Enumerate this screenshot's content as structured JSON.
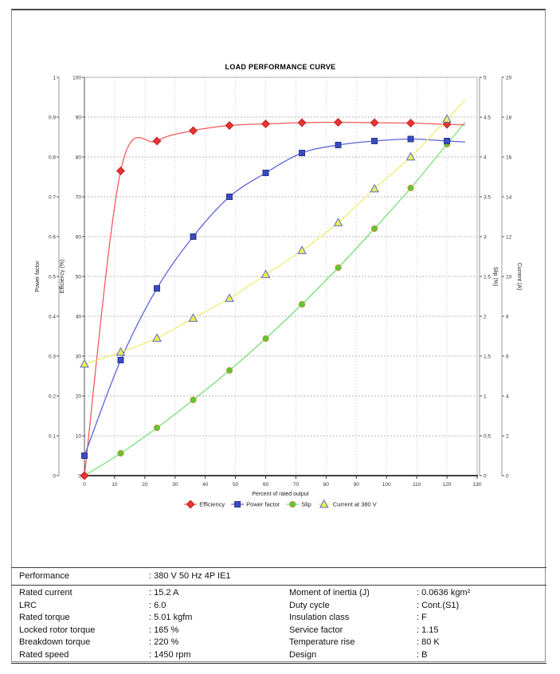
{
  "chart_data": {
    "type": "line",
    "title": "LOAD PERFORMANCE CURVE",
    "xlabel": "Percent of rated output",
    "x_axis": {
      "min": 0,
      "max": 130,
      "step": 10
    },
    "axes": [
      {
        "id": "power_factor",
        "label": "Power factor",
        "min": 0,
        "max": 1,
        "step": 0.1,
        "side": "left"
      },
      {
        "id": "efficiency",
        "label": "Efficiency (%)",
        "min": 0,
        "max": 100,
        "step": 10,
        "side": "left"
      },
      {
        "id": "slip",
        "label": "Slip (%)",
        "min": 0,
        "max": 5,
        "step": 0.5,
        "side": "right"
      },
      {
        "id": "current",
        "label": "Current (A)",
        "min": 0,
        "max": 20,
        "step": 2,
        "side": "right"
      }
    ],
    "x": [
      0,
      12,
      24,
      36,
      48,
      60,
      72,
      84,
      96,
      108,
      120
    ],
    "series": [
      {
        "name": "Efficiency",
        "axis": "efficiency",
        "marker": "diamond",
        "color": "#f25b5b",
        "marker_fill": "#e73434",
        "marker_edge": "#c02424",
        "values": [
          0,
          76.5,
          84.0,
          86.6,
          87.9,
          88.3,
          88.6,
          88.7,
          88.6,
          88.5,
          88.2
        ]
      },
      {
        "name": "Power factor",
        "axis": "power_factor",
        "marker": "square",
        "color": "#5b64d6",
        "marker_fill": "#3a4cc0",
        "marker_edge": "#27378f",
        "values": [
          0.05,
          0.29,
          0.47,
          0.6,
          0.7,
          0.76,
          0.81,
          0.83,
          0.84,
          0.845,
          0.84
        ]
      },
      {
        "name": "Slip",
        "axis": "slip",
        "marker": "circle",
        "color": "#7ade7a",
        "marker_fill": "#54cc34",
        "marker_edge": "#cc8c33",
        "values": [
          0,
          0.28,
          0.6,
          0.95,
          1.32,
          1.72,
          2.15,
          2.61,
          3.1,
          3.61,
          4.16
        ]
      },
      {
        "name": "Current at 380 V",
        "axis": "current",
        "marker": "triangle",
        "color": "#f0ec72",
        "marker_fill": "#eeee55",
        "marker_edge": "#5a6ac8",
        "values": [
          5.6,
          6.2,
          6.9,
          7.9,
          8.9,
          10.1,
          11.3,
          12.7,
          14.4,
          16.0,
          17.9
        ]
      }
    ],
    "legend_position": "bottom",
    "grid": "dashed"
  },
  "spec_table": {
    "performance_label": "Performance",
    "performance_value": ": 380 V 50 Hz 4P IE1",
    "rows": [
      {
        "l1": "Rated current",
        "v1": ": 15.2 A",
        "l2": "Moment of inertia (J)",
        "v2": ": 0.0636 kgm²"
      },
      {
        "l1": "LRC",
        "v1": ": 6.0",
        "l2": "Duty cycle",
        "v2": ": Cont.(S1)"
      },
      {
        "l1": "Rated torque",
        "v1": ": 5.01 kgfm",
        "l2": "Insulation class",
        "v2": ": F"
      },
      {
        "l1": "Locked rotor torque",
        "v1": ": 165 %",
        "l2": "Service factor",
        "v2": ": 1.15"
      },
      {
        "l1": "Breakdown torque",
        "v1": ": 220 %",
        "l2": "Temperature rise",
        "v2": ": 80 K"
      },
      {
        "l1": "Rated speed",
        "v1": ": 1450 rpm",
        "l2": "Design",
        "v2": ": B"
      }
    ]
  }
}
